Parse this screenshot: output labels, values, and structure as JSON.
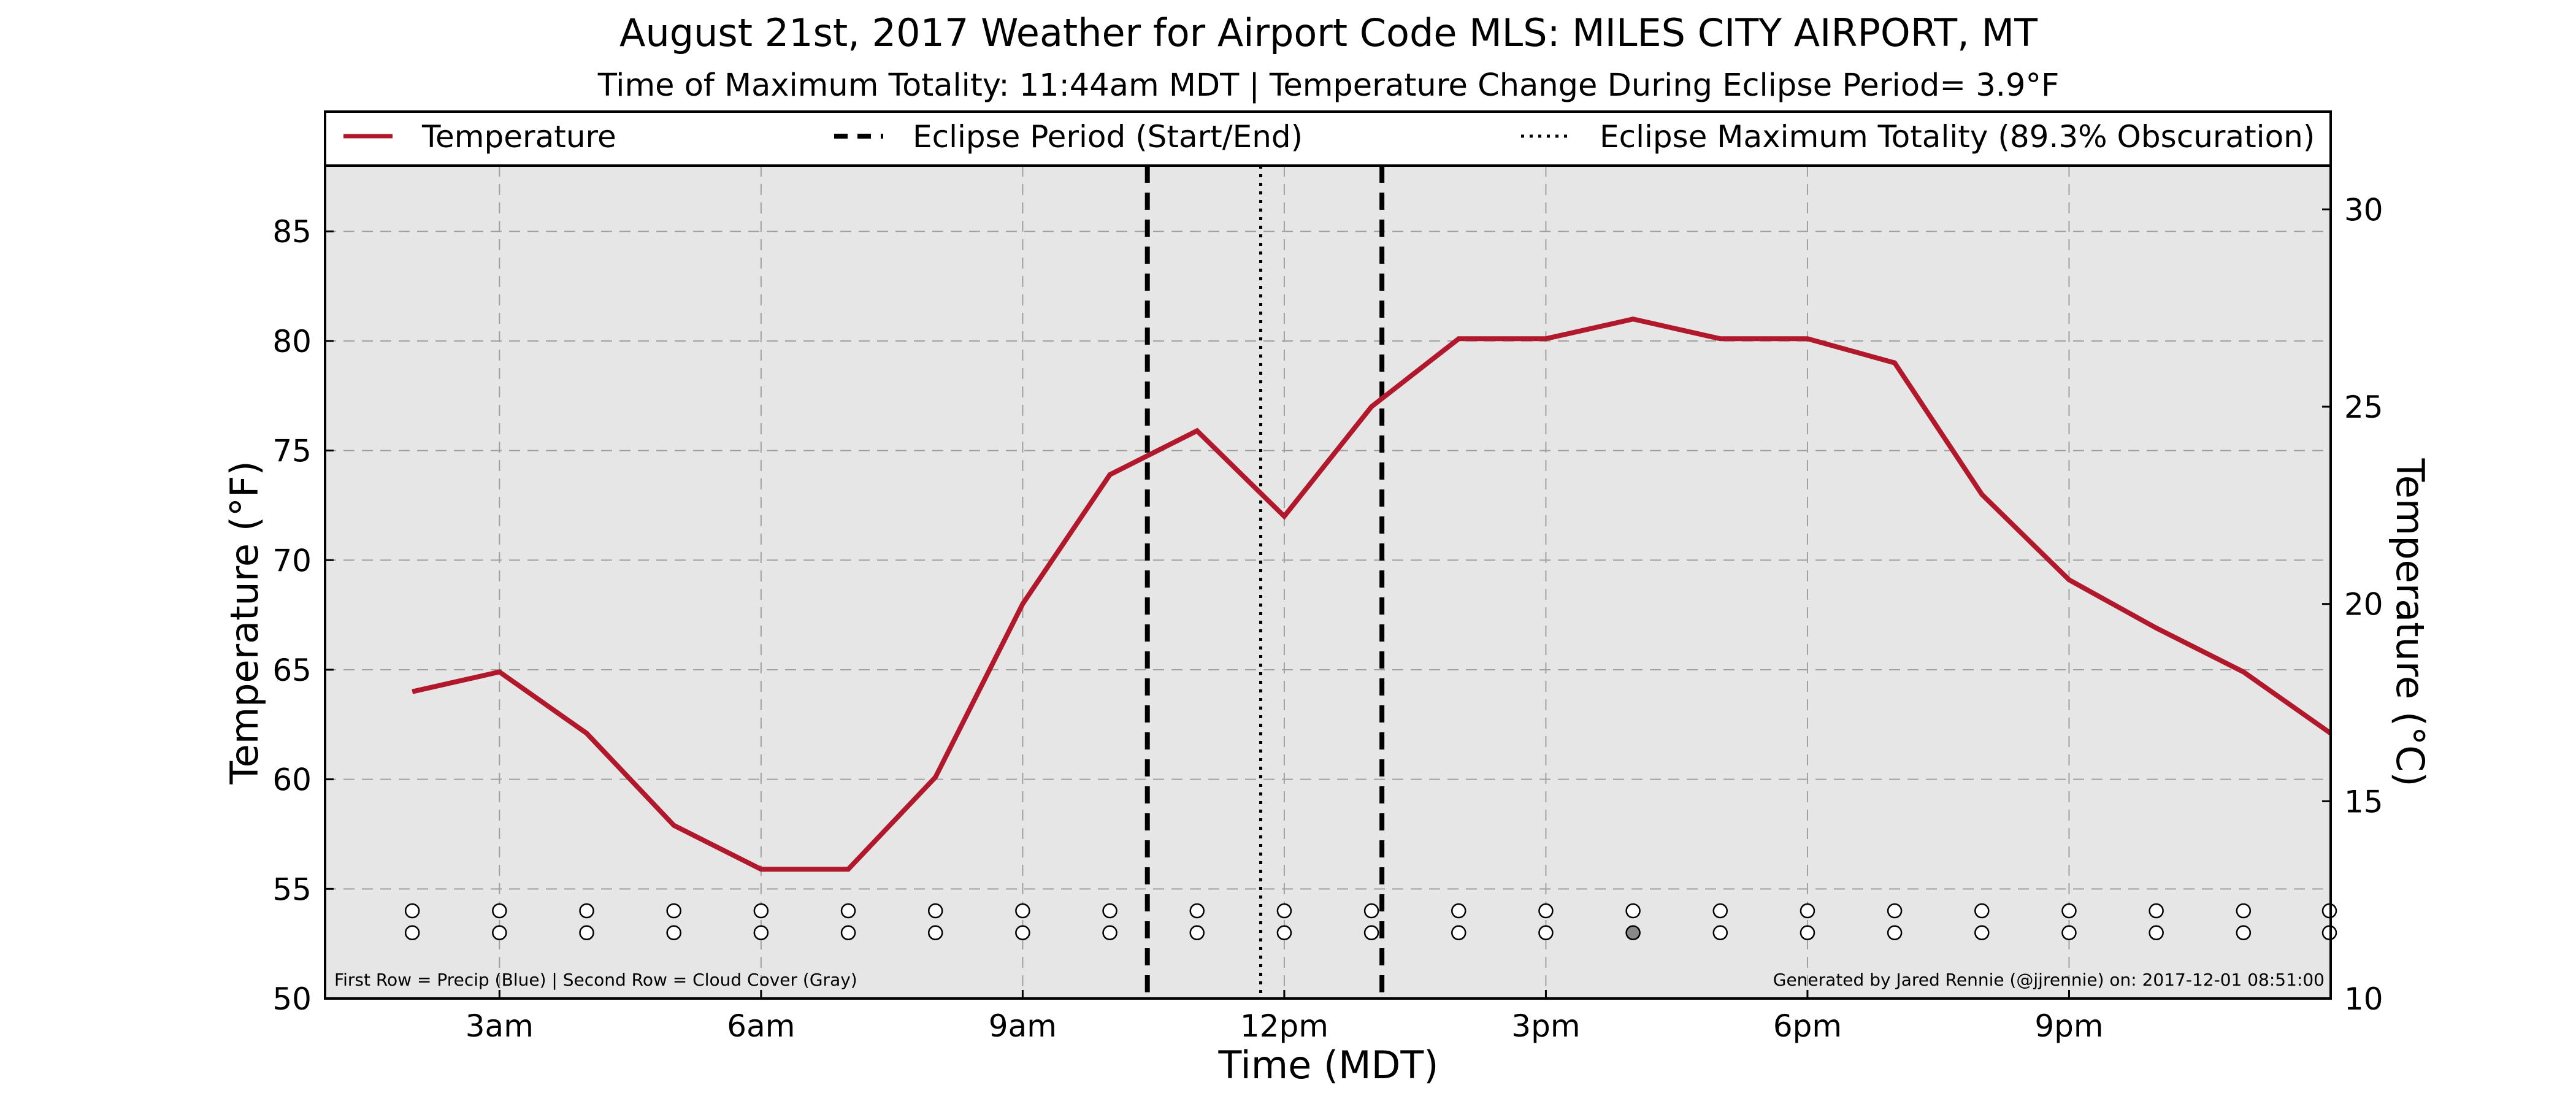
{
  "chart_data": {
    "type": "line",
    "title": "August 21st, 2017 Weather for Airport Code MLS: MILES CITY AIRPORT, MT",
    "subtitle": "Time of Maximum Totality: 11:44am MDT | Temperature Change During Eclipse Period= 3.9°F",
    "xlabel": "Time (MDT)",
    "ylabel_left": "Temperature (°F)",
    "ylabel_right": "Temperature (°C)",
    "x_unit": "hours since midnight MDT",
    "xlim": [
      1.0,
      24.0
    ],
    "ylim": [
      50,
      88
    ],
    "ylim_right_c": [
      10,
      31.11
    ],
    "x_ticks": [
      {
        "value": 3,
        "label": "3am"
      },
      {
        "value": 6,
        "label": "6am"
      },
      {
        "value": 9,
        "label": "9am"
      },
      {
        "value": 12,
        "label": "12pm"
      },
      {
        "value": 15,
        "label": "3pm"
      },
      {
        "value": 18,
        "label": "6pm"
      },
      {
        "value": 21,
        "label": "9pm"
      }
    ],
    "y_ticks": [
      50,
      55,
      60,
      65,
      70,
      75,
      80,
      85
    ],
    "y_ticks_right": [
      10,
      15,
      20,
      25,
      30
    ],
    "grid": true,
    "legend": {
      "placement": "top",
      "entries": [
        {
          "label": "Temperature",
          "style": "solid",
          "color": "#b2182b"
        },
        {
          "label": "Eclipse Period (Start/End)",
          "style": "dashed",
          "color": "#000000"
        },
        {
          "label": "Eclipse Maximum Totality (89.3% Obscuration)",
          "style": "dotted",
          "color": "#000000"
        }
      ]
    },
    "series": [
      {
        "name": "Temperature",
        "color": "#b2182b",
        "x": [
          2,
          3,
          4,
          5,
          6,
          7,
          8,
          9,
          10,
          11,
          12,
          13,
          14,
          15,
          16,
          17,
          18,
          19,
          20,
          21,
          22,
          23,
          24
        ],
        "values": [
          64.0,
          64.9,
          62.1,
          57.9,
          55.9,
          55.9,
          60.1,
          68.0,
          73.9,
          75.9,
          72.0,
          77.0,
          80.1,
          80.1,
          81.0,
          80.1,
          80.1,
          79.0,
          73.0,
          69.1,
          66.9,
          64.9,
          62.1
        ]
      }
    ],
    "eclipse": {
      "start_x": 10.43,
      "end_x": 13.12,
      "max_totality_x": 11.73
    },
    "observation_rows": {
      "x": [
        2,
        3,
        4,
        5,
        6,
        7,
        8,
        9,
        10,
        11,
        12,
        13,
        14,
        15,
        16,
        17,
        18,
        19,
        20,
        21,
        22,
        23,
        24
      ],
      "precip_y": 54,
      "cloud_y": 53,
      "precip": [
        0,
        0,
        0,
        0,
        0,
        0,
        0,
        0,
        0,
        0,
        0,
        0,
        0,
        0,
        0,
        0,
        0,
        0,
        0,
        0,
        0,
        0,
        0
      ],
      "cloud": [
        0,
        0,
        0,
        0,
        0,
        0,
        0,
        0,
        0,
        0,
        0,
        0,
        0,
        0,
        1,
        0,
        0,
        0,
        0,
        0,
        0,
        0,
        0
      ],
      "colors": {
        "empty": "#ffffff",
        "cloud": "#888888",
        "precip": "#2166ac"
      }
    },
    "footnote_left": "First Row = Precip (Blue) | Second Row = Cloud Cover (Gray)",
    "footnote_right": "Generated by Jared Rennie (@jjrennie) on: 2017-12-01 08:51:00",
    "colors": {
      "plot_background": "#e6e6e6",
      "grid": "#a0a0a0"
    }
  }
}
